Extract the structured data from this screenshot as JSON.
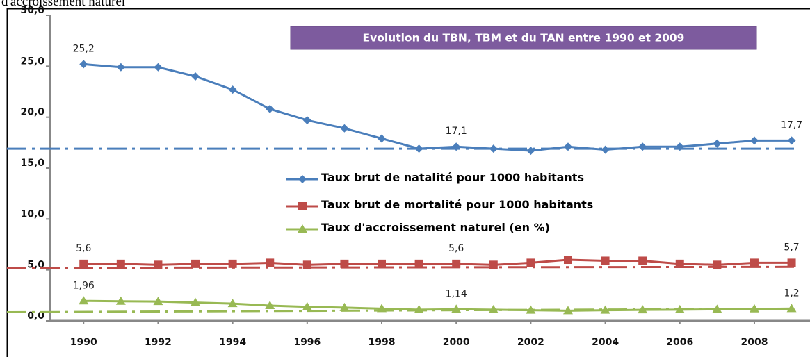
{
  "caption": "d'accroissement naturel",
  "chart_data": {
    "type": "line",
    "title": "Evolution du TBN, TBM et du TAN entre 1990 et 2009",
    "x": [
      1990,
      1991,
      1992,
      1993,
      1994,
      1995,
      1996,
      1997,
      1998,
      1999,
      2000,
      2001,
      2002,
      2003,
      2004,
      2005,
      2006,
      2007,
      2008,
      2009
    ],
    "xlim": [
      1989.1,
      2009.4
    ],
    "xticks": [
      1990,
      1992,
      1994,
      1996,
      1998,
      2000,
      2002,
      2004,
      2006,
      2008
    ],
    "ylim": [
      0,
      30
    ],
    "yticks": [
      {
        "value": 0,
        "label": "0,0"
      },
      {
        "value": 5,
        "label": "5,0"
      },
      {
        "value": 10,
        "label": "10,0"
      },
      {
        "value": 15,
        "label": "15,0"
      },
      {
        "value": 20,
        "label": "20,0"
      },
      {
        "value": 25,
        "label": "25,0"
      },
      {
        "value": 30,
        "label": "30,0"
      }
    ],
    "series": [
      {
        "name": "Taux brut de natalité pour 1000 habitants",
        "color": "#4a7ebb",
        "marker": "diamond",
        "values": [
          25.2,
          24.9,
          24.9,
          24.0,
          22.7,
          20.8,
          19.7,
          18.9,
          17.9,
          16.9,
          17.1,
          16.9,
          16.7,
          17.1,
          16.8,
          17.1,
          17.1,
          17.4,
          17.7,
          17.7
        ],
        "value_labels": [
          "25,2",
          null,
          null,
          null,
          null,
          null,
          null,
          null,
          null,
          null,
          "17,1",
          null,
          null,
          null,
          null,
          null,
          null,
          null,
          null,
          "17,7"
        ],
        "trend": [
          16.9,
          16.9
        ]
      },
      {
        "name": "Taux brut de mortalité pour 1000 habitants",
        "color": "#be4b48",
        "marker": "square",
        "values": [
          5.6,
          5.6,
          5.5,
          5.6,
          5.6,
          5.7,
          5.5,
          5.6,
          5.6,
          5.6,
          5.6,
          5.5,
          5.7,
          6.0,
          5.9,
          5.9,
          5.6,
          5.5,
          5.7,
          5.7
        ],
        "value_labels": [
          "5,6",
          null,
          null,
          null,
          null,
          null,
          null,
          null,
          null,
          null,
          "5,6",
          null,
          null,
          null,
          null,
          null,
          null,
          null,
          null,
          "5,7"
        ],
        "trend": [
          5.2,
          5.3
        ]
      },
      {
        "name": "Taux d'accroissement naturel (en %)",
        "color": "#98b954",
        "marker": "triangle",
        "values": [
          1.96,
          1.93,
          1.9,
          1.8,
          1.7,
          1.5,
          1.38,
          1.3,
          1.2,
          1.1,
          1.14,
          1.1,
          1.05,
          1.0,
          1.05,
          1.08,
          1.1,
          1.13,
          1.18,
          1.2
        ],
        "value_labels": [
          "1,96",
          null,
          null,
          null,
          null,
          null,
          null,
          null,
          null,
          null,
          "1,14",
          null,
          null,
          null,
          null,
          null,
          null,
          null,
          null,
          "1,2"
        ],
        "trend": [
          0.85,
          1.2
        ]
      }
    ]
  }
}
